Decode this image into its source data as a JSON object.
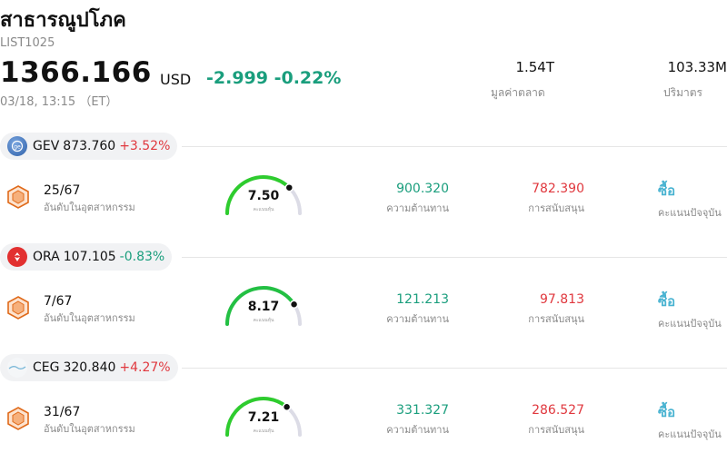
{
  "header": {
    "title": "สาธารณูปโภค",
    "code": "LIST1025",
    "price": "1366.166",
    "currency": "USD",
    "change": "-2.999 -0.22%",
    "timestamp": "03/18, 13:15 （ET）",
    "market_cap": {
      "value": "1.54T",
      "label": "มูลค่าตลาด"
    },
    "volume": {
      "value": "103.33M",
      "label": "ปริมาตร"
    }
  },
  "stocks": [
    {
      "symbol": "GEV",
      "price": "873.760",
      "change_pct": "+3.52%",
      "rank": "25/67",
      "rank_label": "อันดับในอุตสาหกรรม",
      "score": "7.50",
      "score_caption": "คะแนนหุ้น",
      "score_fraction": 0.75,
      "resistance": "900.320",
      "resistance_label": "ความต้านทาน",
      "support": "782.390",
      "support_label": "การสนับสนุน",
      "rating": "ซื้อ",
      "rating_label": "คะแนนปัจจุบัน"
    },
    {
      "symbol": "ORA",
      "price": "107.105",
      "change_pct": "-0.83%",
      "rank": "7/67",
      "rank_label": "อันดับในอุตสาหกรรม",
      "score": "8.17",
      "score_caption": "คะแนนหุ้น",
      "score_fraction": 0.817,
      "resistance": "121.213",
      "resistance_label": "ความต้านทาน",
      "support": "97.813",
      "support_label": "การสนับสนุน",
      "rating": "ซื้อ",
      "rating_label": "คะแนนปัจจุบัน"
    },
    {
      "symbol": "CEG",
      "price": "320.840",
      "change_pct": "+4.27%",
      "rank": "31/67",
      "rank_label": "อันดับในอุตสาหกรรม",
      "score": "7.21",
      "score_caption": "คะแนนหุ้น",
      "score_fraction": 0.721,
      "resistance": "331.327",
      "resistance_label": "ความต้านทาน",
      "support": "286.527",
      "support_label": "การสนับสนุน",
      "rating": "ซื้อ",
      "rating_label": "คะแนนปัจจุบัน"
    }
  ],
  "colors": {
    "up": "#e0383e",
    "down": "#1a9e7d",
    "gauge": "#2ecc2e",
    "gauge_track": "#dcdce6",
    "buy": "#49b3d1"
  }
}
